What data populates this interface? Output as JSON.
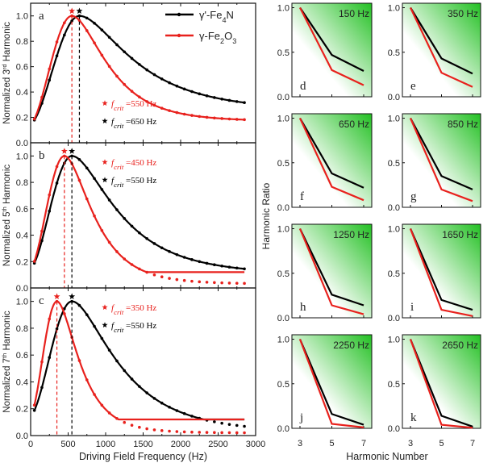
{
  "colors": {
    "fe4n": "#000000",
    "fe2o3": "#e8211d",
    "green_light": "#ffffff",
    "green_dark": "#22c022"
  },
  "chart_data": {
    "left": {
      "type": "line",
      "xlabel": "Driving Field Frequency (Hz)",
      "xlim": [
        0,
        3000
      ],
      "xticks": [
        "0",
        "500",
        "1000",
        "1500",
        "2000",
        "2500",
        "3000"
      ],
      "legend": [
        {
          "key": "fe4n",
          "label": "γ'-Fe4N"
        },
        {
          "key": "fe2o3",
          "label": "γ-Fe2O3"
        }
      ],
      "panels": [
        {
          "letter": "a",
          "ylabel": "Normalized 3rd Harmonic",
          "ylim": [
            0,
            1.1
          ],
          "yticks": [
            "0.0",
            "0.2",
            "0.4",
            "0.6",
            "0.8",
            "1.0"
          ],
          "fcrit": [
            {
              "key": "fe2o3",
              "text": "=550 Hz",
              "value": 550
            },
            {
              "key": "fe4n",
              "text": "=650 Hz",
              "value": 650
            }
          ],
          "fe4n": {
            "f0": 650,
            "tail": 0.25
          },
          "fe2o3": {
            "f0": 550,
            "tail": 0.17
          }
        },
        {
          "letter": "b",
          "ylabel": "Normalized 5th Harmonic",
          "ylim": [
            0,
            1.1
          ],
          "yticks": [
            "0.0",
            "0.2",
            "0.4",
            "0.6",
            "0.8",
            "1.0"
          ],
          "fcrit": [
            {
              "key": "fe2o3",
              "text": "=450 Hz",
              "value": 450
            },
            {
              "key": "fe4n",
              "text": "=550 Hz",
              "value": 550
            }
          ],
          "fe4n": {
            "f0": 550,
            "tail": 0.1
          },
          "fe2o3": {
            "f0": 450,
            "tail": 0.03
          }
        },
        {
          "letter": "c",
          "ylabel": "Normalized 7th Harmonic",
          "ylim": [
            0,
            1.1
          ],
          "yticks": [
            "0.0",
            "0.2",
            "0.4",
            "0.6",
            "0.8",
            "1.0"
          ],
          "fcrit": [
            {
              "key": "fe2o3",
              "text": "=350 Hz",
              "value": 350
            },
            {
              "key": "fe4n",
              "text": "=550 Hz",
              "value": 550
            }
          ],
          "fe4n": {
            "f0": 550,
            "tail": 0.02
          },
          "fe2o3": {
            "f0": 350,
            "tail": 0.02
          }
        }
      ]
    },
    "right": {
      "type": "line",
      "ylabel": "Harmonic Ratio",
      "xlabel": "Harmonic Number",
      "x": [
        3,
        5,
        7
      ],
      "xticks": [
        "3",
        "5",
        "7"
      ],
      "yticks": [
        "0.0",
        "0.5",
        "1.0"
      ],
      "ylim": [
        0,
        1.05
      ],
      "panels": [
        {
          "letter": "d",
          "freq": "150 Hz",
          "fe4n": [
            1.0,
            0.47,
            0.29
          ],
          "fe2o3": [
            1.0,
            0.3,
            0.13
          ]
        },
        {
          "letter": "e",
          "freq": "350 Hz",
          "fe4n": [
            1.0,
            0.43,
            0.26
          ],
          "fe2o3": [
            1.0,
            0.27,
            0.11
          ]
        },
        {
          "letter": "f",
          "freq": "650 Hz",
          "fe4n": [
            1.0,
            0.38,
            0.22
          ],
          "fe2o3": [
            1.0,
            0.23,
            0.08
          ]
        },
        {
          "letter": "g",
          "freq": "850 Hz",
          "fe4n": [
            1.0,
            0.35,
            0.2
          ],
          "fe2o3": [
            1.0,
            0.2,
            0.07
          ]
        },
        {
          "letter": "h",
          "freq": "1250 Hz",
          "fe4n": [
            1.0,
            0.26,
            0.14
          ],
          "fe2o3": [
            1.0,
            0.14,
            0.04
          ]
        },
        {
          "letter": "i",
          "freq": "1650 Hz",
          "fe4n": [
            1.0,
            0.2,
            0.09
          ],
          "fe2o3": [
            1.0,
            0.09,
            0.02
          ]
        },
        {
          "letter": "j",
          "freq": "2250 Hz",
          "fe4n": [
            1.0,
            0.16,
            0.04
          ],
          "fe2o3": [
            1.0,
            0.05,
            0.01
          ]
        },
        {
          "letter": "k",
          "freq": "2650 Hz",
          "fe4n": [
            1.0,
            0.14,
            0.02
          ],
          "fe2o3": [
            1.0,
            0.04,
            0.005
          ]
        }
      ]
    }
  }
}
